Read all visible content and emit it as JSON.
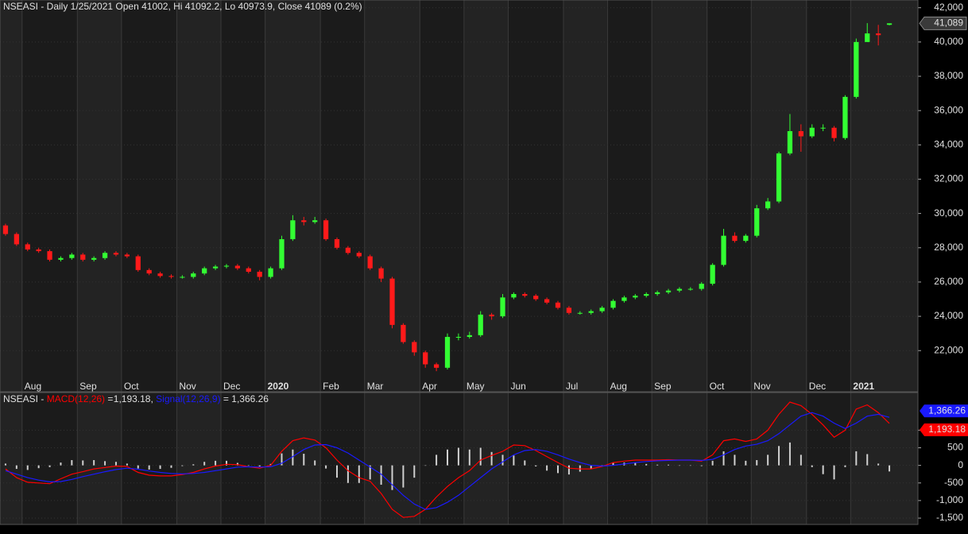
{
  "chart_data": [
    {
      "type": "candlestick",
      "title": "NSEASI - Daily 1/25/2021 Open 41002, Hi 41092.2, Lo 40973.9, Close 41089 (0.2%)",
      "categories": [
        null,
        null,
        "Aug",
        null,
        null,
        null,
        null,
        "Sep",
        null,
        null,
        null,
        "Oct",
        null,
        null,
        null,
        null,
        "Nov",
        null,
        null,
        null,
        "Dec",
        null,
        null,
        null,
        "2020",
        null,
        null,
        null,
        null,
        "Feb",
        null,
        null,
        null,
        "Mar",
        null,
        null,
        null,
        null,
        "Apr",
        null,
        null,
        null,
        "May",
        null,
        null,
        null,
        "Jun",
        null,
        null,
        null,
        null,
        "Jul",
        null,
        null,
        null,
        "Aug",
        null,
        null,
        null,
        "Sep",
        null,
        null,
        null,
        null,
        "Oct",
        null,
        null,
        null,
        "Nov",
        null,
        null,
        null,
        null,
        "Dec",
        null,
        null,
        null,
        "2021",
        null,
        null,
        null
      ],
      "open": [
        29300,
        28800,
        28200,
        27900,
        27800,
        27300,
        27400,
        27600,
        27300,
        27400,
        27700,
        27600,
        27500,
        26700,
        26500,
        26350,
        26300,
        26300,
        26500,
        26800,
        26900,
        26950,
        26800,
        26600,
        26300,
        26800,
        28500,
        29600,
        29500,
        29600,
        28500,
        28000,
        27700,
        27500,
        26800,
        26200,
        23500,
        22500,
        21900,
        21200,
        21000,
        22800,
        22800,
        22900,
        24100,
        24000,
        25100,
        25300,
        25200,
        25000,
        24800,
        24500,
        24200,
        24200,
        24300,
        24500,
        24900,
        25100,
        25200,
        25300,
        25400,
        25500,
        25600,
        25600,
        25900,
        27000,
        28700,
        28400,
        28700,
        30300,
        30700,
        33500,
        34800,
        34500,
        35000,
        35000,
        34400,
        36800,
        40000,
        40500,
        41002
      ],
      "high": [
        29400,
        28900,
        28300,
        28000,
        27900,
        27500,
        27700,
        27700,
        27500,
        27800,
        27800,
        27700,
        27600,
        26800,
        26600,
        26450,
        26400,
        26600,
        26900,
        27000,
        27050,
        27050,
        26900,
        26700,
        26900,
        28700,
        29900,
        29800,
        29800,
        29700,
        28600,
        28100,
        27800,
        27600,
        26900,
        26300,
        23600,
        22600,
        22000,
        21300,
        23000,
        23000,
        23100,
        24300,
        24200,
        25300,
        25400,
        25400,
        25300,
        25100,
        24900,
        24600,
        24300,
        24400,
        24600,
        25000,
        25200,
        25300,
        25400,
        25500,
        25600,
        25700,
        25700,
        26000,
        27100,
        29100,
        28900,
        28800,
        30500,
        30900,
        33600,
        35800,
        35200,
        35200,
        35200,
        35100,
        36900,
        40200,
        41100,
        41000,
        41092.2
      ],
      "low": [
        28700,
        28100,
        27800,
        27700,
        27200,
        27200,
        27300,
        27200,
        27200,
        27300,
        27500,
        27400,
        26600,
        26400,
        26250,
        26200,
        26200,
        26200,
        26400,
        26700,
        26800,
        26700,
        26500,
        26100,
        26200,
        26700,
        28400,
        29300,
        29400,
        28400,
        27900,
        27600,
        27400,
        26700,
        26000,
        23300,
        22400,
        21700,
        21000,
        20800,
        20900,
        22600,
        22700,
        22800,
        23800,
        23900,
        25000,
        25100,
        24900,
        24700,
        24400,
        24100,
        24100,
        24100,
        24200,
        24400,
        24800,
        25000,
        25100,
        25200,
        25300,
        25400,
        25500,
        25500,
        25800,
        26900,
        28300,
        28300,
        28600,
        30200,
        30600,
        33400,
        33600,
        34400,
        34800,
        34200,
        34300,
        36700,
        40000,
        39800,
        40973.9
      ],
      "close": [
        28800,
        28200,
        27900,
        27800,
        27300,
        27400,
        27600,
        27300,
        27400,
        27700,
        27600,
        27500,
        26700,
        26500,
        26350,
        26300,
        26300,
        26500,
        26800,
        26900,
        26950,
        26800,
        26600,
        26300,
        26800,
        28500,
        29600,
        29500,
        29600,
        28500,
        28000,
        27700,
        27500,
        26800,
        26200,
        23500,
        22500,
        21900,
        21200,
        21000,
        22800,
        22800,
        22900,
        24100,
        24000,
        25100,
        25300,
        25200,
        25000,
        24800,
        24500,
        24200,
        24200,
        24300,
        24500,
        24900,
        25100,
        25200,
        25300,
        25400,
        25500,
        25600,
        25600,
        25900,
        27000,
        28700,
        28400,
        28700,
        30300,
        30700,
        33500,
        34800,
        34500,
        35000,
        35000,
        34400,
        36800,
        40000,
        40500,
        40400,
        41089
      ],
      "close_label": "41,089",
      "up_color": "#33ff33",
      "down_color": "#ff1a1a",
      "ylim": [
        19600,
        42450
      ],
      "yticks": [
        {
          "value": 22000,
          "label": "22,000"
        },
        {
          "value": 24000,
          "label": "24,000"
        },
        {
          "value": 26000,
          "label": "26,000"
        },
        {
          "value": 28000,
          "label": "28,000"
        },
        {
          "value": 30000,
          "label": "30,000"
        },
        {
          "value": 32000,
          "label": "32,000"
        },
        {
          "value": 34000,
          "label": "34,000"
        },
        {
          "value": 36000,
          "label": "36,000"
        },
        {
          "value": 38000,
          "label": "38,000"
        },
        {
          "value": 40000,
          "label": "40,000"
        },
        {
          "value": 42000,
          "label": "42,000"
        }
      ],
      "grid": true
    },
    {
      "type": "macd",
      "title": "NSEASI -",
      "separators": [
        "=",
        ","
      ],
      "series": [
        {
          "name": "MACD(12,26)",
          "color": "#ff0000",
          "value_label": "1,193.18",
          "values": [
            -100,
            -350,
            -480,
            -500,
            -520,
            -380,
            -250,
            -180,
            -100,
            -60,
            -20,
            -30,
            -200,
            -280,
            -300,
            -300,
            -260,
            -200,
            -100,
            -20,
            30,
            20,
            -40,
            -80,
            0,
            400,
            700,
            780,
            720,
            500,
            150,
            -150,
            -350,
            -450,
            -800,
            -1250,
            -1480,
            -1450,
            -1250,
            -900,
            -600,
            -350,
            -150,
            150,
            280,
            400,
            580,
            560,
            420,
            250,
            80,
            -80,
            -100,
            -100,
            -30,
            80,
            120,
            150,
            150,
            150,
            160,
            150,
            150,
            120,
            300,
            700,
            750,
            680,
            750,
            1000,
            1450,
            1800,
            1700,
            1450,
            1150,
            800,
            1000,
            1600,
            1720,
            1500,
            1193.18
          ]
        },
        {
          "name": "Signal(12,26,9)",
          "color": "#1a1aff",
          "value_label": "1,366.26",
          "values": [
            -150,
            -250,
            -350,
            -420,
            -470,
            -460,
            -400,
            -320,
            -250,
            -180,
            -120,
            -80,
            -110,
            -160,
            -200,
            -230,
            -240,
            -230,
            -200,
            -150,
            -100,
            -50,
            -40,
            -50,
            -40,
            60,
            250,
            450,
            580,
            590,
            500,
            350,
            150,
            -50,
            -250,
            -550,
            -850,
            -1100,
            -1250,
            -1200,
            -1050,
            -850,
            -600,
            -350,
            -100,
            100,
            300,
            420,
            450,
            400,
            300,
            180,
            80,
            0,
            -20,
            0,
            40,
            80,
            110,
            130,
            140,
            150,
            150,
            140,
            170,
            300,
            450,
            550,
            600,
            700,
            900,
            1150,
            1400,
            1500,
            1400,
            1200,
            1050,
            1200,
            1400,
            1450,
            1366.26
          ]
        }
      ],
      "histogram": {
        "color": "#d0d0d0",
        "values": [
          50,
          -100,
          -130,
          -80,
          -50,
          80,
          150,
          140,
          150,
          120,
          100,
          50,
          -90,
          -120,
          -100,
          -70,
          -20,
          30,
          100,
          130,
          130,
          70,
          0,
          -30,
          40,
          340,
          450,
          330,
          140,
          -90,
          -350,
          -500,
          -500,
          -400,
          -550,
          -700,
          -630,
          -350,
          0,
          300,
          450,
          500,
          450,
          500,
          380,
          300,
          280,
          140,
          -30,
          -150,
          -220,
          -260,
          -180,
          -100,
          -10,
          80,
          80,
          70,
          40,
          20,
          20,
          0,
          0,
          -20,
          130,
          400,
          300,
          130,
          150,
          300,
          550,
          650,
          300,
          -50,
          -250,
          -400,
          -50,
          400,
          320,
          50,
          -173.08
        ]
      },
      "ylim": [
        -1680,
        2070
      ],
      "yticks": [
        {
          "value": -1500,
          "label": "-1,500"
        },
        {
          "value": -1000,
          "label": "-1,000"
        },
        -500,
        0,
        500,
        {
          "value": 1000,
          "label": "1,000"
        }
      ],
      "grid": true
    }
  ]
}
